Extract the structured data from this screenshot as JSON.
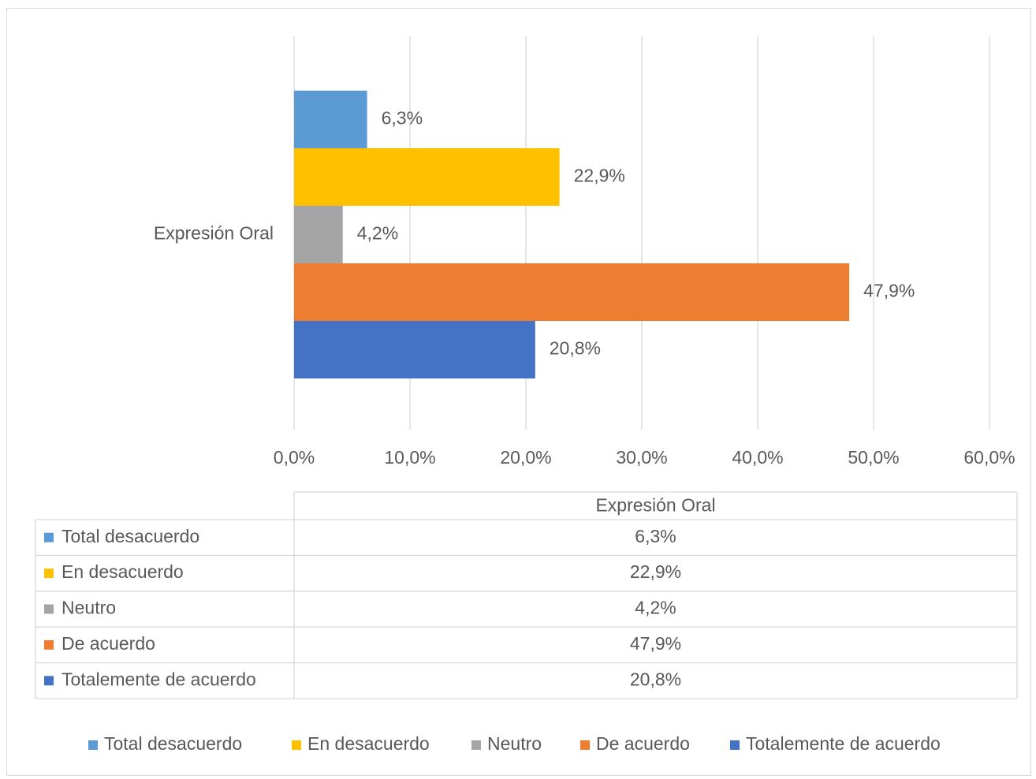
{
  "chart_data": {
    "type": "bar",
    "orientation": "horizontal",
    "categories": [
      "Expresión Oral"
    ],
    "series": [
      {
        "name": "Total desacuerdo",
        "values": [
          6.3
        ],
        "label": "6,3%",
        "color": "#5B9BD5"
      },
      {
        "name": "En desacuerdo",
        "values": [
          22.9
        ],
        "label": "22,9%",
        "color": "#FFC000"
      },
      {
        "name": "Neutro",
        "values": [
          4.2
        ],
        "label": "4,2%",
        "color": "#A5A5A5"
      },
      {
        "name": "De acuerdo",
        "values": [
          47.9
        ],
        "label": "47,9%",
        "color": "#ED7D31"
      },
      {
        "name": "Totalemente de acuerdo",
        "values": [
          20.8
        ],
        "label": "20,8%",
        "color": "#4472C4"
      }
    ],
    "x_ticks": [
      {
        "value": 0,
        "label": "0,0%"
      },
      {
        "value": 10,
        "label": "10,0%"
      },
      {
        "value": 20,
        "label": "20,0%"
      },
      {
        "value": 30,
        "label": "30,0%"
      },
      {
        "value": 40,
        "label": "40,0%"
      },
      {
        "value": 50,
        "label": "50,0%"
      },
      {
        "value": 60,
        "label": "60,0%"
      }
    ],
    "xlim": [
      0,
      60
    ],
    "grid": "vertical",
    "data_table": {
      "header": "Expresión Oral",
      "rows": [
        {
          "name": "Total desacuerdo",
          "value": "6,3%"
        },
        {
          "name": "En desacuerdo",
          "value": "22,9%"
        },
        {
          "name": "Neutro",
          "value": "4,2%"
        },
        {
          "name": "De acuerdo",
          "value": "47,9%"
        },
        {
          "name": "Totalemente de acuerdo",
          "value": "20,8%"
        }
      ]
    },
    "legend": {
      "placement": "bottom",
      "entries": [
        "Total desacuerdo",
        "En desacuerdo",
        "Neutro",
        "De acuerdo",
        "Totalemente de acuerdo"
      ]
    }
  }
}
